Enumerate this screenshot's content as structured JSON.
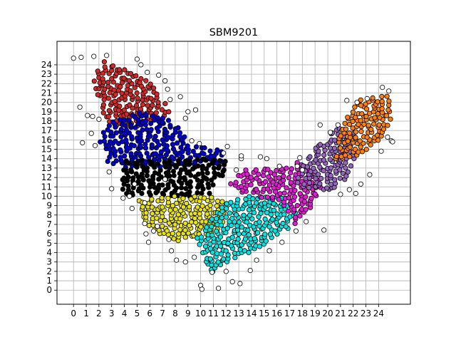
{
  "chart_data": {
    "type": "scatter",
    "title": "SBM9201",
    "xlabel": "",
    "ylabel": "",
    "xlim": [
      -1.3,
      26.5
    ],
    "ylim": [
      -1.5,
      26.5
    ],
    "grid": true,
    "legend": "none",
    "xticks": [
      0,
      1,
      2,
      3,
      4,
      5,
      6,
      7,
      8,
      9,
      10,
      11,
      12,
      13,
      14,
      15,
      16,
      17,
      18,
      19,
      20,
      21,
      22,
      23,
      24
    ],
    "yticks": [
      0,
      1,
      2,
      3,
      4,
      5,
      6,
      7,
      8,
      9,
      10,
      11,
      12,
      13,
      14,
      15,
      16,
      17,
      18,
      19,
      20,
      21,
      22,
      23,
      24
    ],
    "clusters": [
      {
        "color": "#d62728",
        "polygon": [
          [
            1.6,
            22.3
          ],
          [
            2.2,
            24.8
          ],
          [
            3.6,
            23.8
          ],
          [
            5.6,
            22.8
          ],
          [
            7.6,
            19.2
          ],
          [
            7.2,
            18.2
          ],
          [
            5.3,
            17.5
          ],
          [
            3.6,
            17.2
          ],
          [
            2.2,
            18.3
          ],
          [
            1.8,
            20.8
          ]
        ]
      },
      {
        "color": "#0000cc",
        "polygon": [
          [
            2.0,
            16.0
          ],
          [
            2.8,
            17.8
          ],
          [
            5.2,
            18.9
          ],
          [
            7.6,
            18.4
          ],
          [
            9.3,
            15.4
          ],
          [
            11.8,
            15.0
          ],
          [
            11.6,
            13.4
          ],
          [
            4.2,
            13.0
          ],
          [
            2.6,
            13.6
          ]
        ]
      },
      {
        "color": "#000000",
        "polygon": [
          [
            4.0,
            13.8
          ],
          [
            12.0,
            14.0
          ],
          [
            12.0,
            12.3
          ],
          [
            11.0,
            11.5
          ],
          [
            10.9,
            10.0
          ],
          [
            4.0,
            10.0
          ],
          [
            3.8,
            11.0
          ]
        ]
      },
      {
        "color": "#e8e20f",
        "polygon": [
          [
            5.0,
            9.8
          ],
          [
            11.0,
            10.2
          ],
          [
            12.0,
            9.5
          ],
          [
            11.8,
            6.6
          ],
          [
            10.4,
            5.8
          ],
          [
            8.3,
            5.2
          ],
          [
            7.0,
            5.6
          ],
          [
            5.6,
            7.3
          ],
          [
            5.2,
            8.8
          ]
        ]
      },
      {
        "color": "#00e5e5",
        "polygon": [
          [
            9.6,
            5.4
          ],
          [
            11.8,
            9.2
          ],
          [
            13.3,
            10.0
          ],
          [
            16.4,
            9.9
          ],
          [
            17.6,
            8.2
          ],
          [
            17.0,
            6.4
          ],
          [
            15.0,
            4.8
          ],
          [
            13.2,
            3.6
          ],
          [
            11.0,
            1.8
          ],
          [
            10.3,
            3.0
          ]
        ]
      },
      {
        "color": "#e619d9",
        "polygon": [
          [
            12.0,
            11.1
          ],
          [
            13.5,
            12.9
          ],
          [
            15.4,
            12.9
          ],
          [
            18.0,
            13.8
          ],
          [
            19.6,
            11.1
          ],
          [
            19.2,
            9.2
          ],
          [
            17.4,
            7.0
          ],
          [
            16.0,
            9.4
          ],
          [
            12.8,
            10.4
          ]
        ]
      },
      {
        "color": "#9467bd",
        "polygon": [
          [
            17.3,
            11.5
          ],
          [
            18.6,
            14.5
          ],
          [
            20.0,
            16.4
          ],
          [
            20.8,
            17.6
          ],
          [
            22.2,
            16.7
          ],
          [
            22.0,
            12.3
          ],
          [
            20.3,
            10.6
          ],
          [
            18.2,
            10.8
          ]
        ]
      },
      {
        "color": "#ff7f0e",
        "polygon": [
          [
            20.6,
            15.6
          ],
          [
            21.8,
            19.2
          ],
          [
            22.8,
            20.6
          ],
          [
            24.8,
            20.8
          ],
          [
            25.1,
            18.3
          ],
          [
            24.3,
            16.3
          ],
          [
            22.4,
            14.1
          ],
          [
            20.6,
            13.9
          ]
        ]
      }
    ],
    "outliers": [
      [
        0,
        24.7
      ],
      [
        0.6,
        24.8
      ],
      [
        1.6,
        24.9
      ],
      [
        2.6,
        25.0
      ],
      [
        5.0,
        24.6
      ],
      [
        5.3,
        24.0
      ],
      [
        5.8,
        23.2
      ],
      [
        6.7,
        22.9
      ],
      [
        7.2,
        22.3
      ],
      [
        7.4,
        21.4
      ],
      [
        7.6,
        20.3
      ],
      [
        8.4,
        20.6
      ],
      [
        8.8,
        18.3
      ],
      [
        9.0,
        19.0
      ],
      [
        9.6,
        19.2
      ],
      [
        1.1,
        18.6
      ],
      [
        0.5,
        19.5
      ],
      [
        1.5,
        18.5
      ],
      [
        2.0,
        18.2
      ],
      [
        1.4,
        16.7
      ],
      [
        0.7,
        15.7
      ],
      [
        1.7,
        15.4
      ],
      [
        2.8,
        12.6
      ],
      [
        3.0,
        10.8
      ],
      [
        3.9,
        9.8
      ],
      [
        4.6,
        8.7
      ],
      [
        5.6,
        7.1
      ],
      [
        5.7,
        6.0
      ],
      [
        5.9,
        5.1
      ],
      [
        7.5,
        5.4
      ],
      [
        7.7,
        4.2
      ],
      [
        8.1,
        3.2
      ],
      [
        8.8,
        3.0
      ],
      [
        9.5,
        3.5
      ],
      [
        10.0,
        0.5
      ],
      [
        10.1,
        0.1
      ],
      [
        10.9,
        1.9
      ],
      [
        11.4,
        0.2
      ],
      [
        12.0,
        2.0
      ],
      [
        12.5,
        0.9
      ],
      [
        13.1,
        0.7
      ],
      [
        13.9,
        2.1
      ],
      [
        14.4,
        3.2
      ],
      [
        15.4,
        4.2
      ],
      [
        16.4,
        5.1
      ],
      [
        17.5,
        6.3
      ],
      [
        18.3,
        7.3
      ],
      [
        19.7,
        6.4
      ],
      [
        21.0,
        10.2
      ],
      [
        21.7,
        10.7
      ],
      [
        22.2,
        10.3
      ],
      [
        22.6,
        11.3
      ],
      [
        23.3,
        12.3
      ],
      [
        24.2,
        14.8
      ],
      [
        24.7,
        16.3
      ],
      [
        25.0,
        15.9
      ],
      [
        25.1,
        15.8
      ],
      [
        21.5,
        20.2
      ],
      [
        22.3,
        20.0
      ],
      [
        23.1,
        20.4
      ],
      [
        24.3,
        21.6
      ],
      [
        24.8,
        21.2
      ],
      [
        19.4,
        17.6
      ],
      [
        20.2,
        16.8
      ],
      [
        20.8,
        17.6
      ],
      [
        12.8,
        12.8
      ],
      [
        13.2,
        14.0
      ],
      [
        14.7,
        14.2
      ],
      [
        15.2,
        14.0
      ],
      [
        12.1,
        15.3
      ],
      [
        11.8,
        14.6
      ],
      [
        9.3,
        15.9
      ],
      [
        9.9,
        15.6
      ],
      [
        13.2,
        14.3
      ],
      [
        16.2,
        13.2
      ],
      [
        17.8,
        14.1
      ],
      [
        17.6,
        13.2
      ],
      [
        18.0,
        12.8
      ],
      [
        7.2,
        11.8
      ],
      [
        6.3,
        6.3
      ],
      [
        6.6,
        6.8
      ],
      [
        5.6,
        9.3
      ],
      [
        4.4,
        10.0
      ],
      [
        4.8,
        11.3
      ]
    ]
  }
}
